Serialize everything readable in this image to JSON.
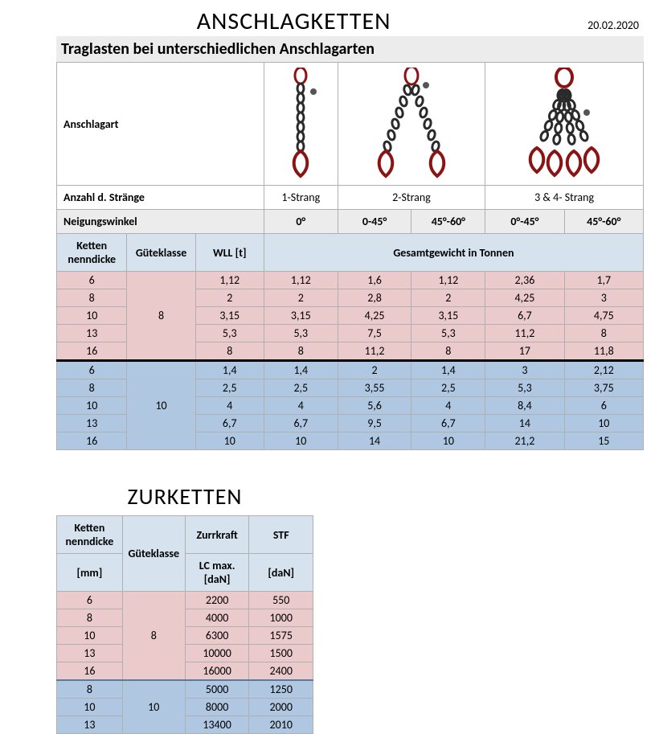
{
  "page": {
    "title": "ANSCHLAGKETTEN",
    "date": "20.02.2020",
    "subtitle": "Traglasten bei unterschiedlichen Anschlagarten"
  },
  "t1": {
    "row_anschlagart": "Anschlagart",
    "row_anzahl": "Anzahl d. Stränge",
    "anzahl_vals": [
      "1-Strang",
      "2-Strang",
      "3 & 4- Strang"
    ],
    "row_winkel": "Neigungswinkel",
    "winkel_vals": [
      "0°",
      "0-45°",
      "45°-60°",
      "0°-45°",
      "45°-60°"
    ],
    "col_kette": "Ketten nenndicke",
    "col_gk": "Güteklasse",
    "col_wll": "WLL [t]",
    "col_gesamt": "Gesamtgewicht in Tonnen",
    "group1_gk": "8",
    "group2_gk": "10",
    "rows1": [
      {
        "d": "6",
        "wll": "1,12",
        "v": [
          "1,12",
          "1,6",
          "1,12",
          "2,36",
          "1,7"
        ]
      },
      {
        "d": "8",
        "wll": "2",
        "v": [
          "2",
          "2,8",
          "2",
          "4,25",
          "3"
        ]
      },
      {
        "d": "10",
        "wll": "3,15",
        "v": [
          "3,15",
          "4,25",
          "3,15",
          "6,7",
          "4,75"
        ]
      },
      {
        "d": "13",
        "wll": "5,3",
        "v": [
          "5,3",
          "7,5",
          "5,3",
          "11,2",
          "8"
        ]
      },
      {
        "d": "16",
        "wll": "8",
        "v": [
          "8",
          "11,2",
          "8",
          "17",
          "11,8"
        ]
      }
    ],
    "rows2": [
      {
        "d": "6",
        "wll": "1,4",
        "v": [
          "1,4",
          "2",
          "1,4",
          "3",
          "2,12"
        ]
      },
      {
        "d": "8",
        "wll": "2,5",
        "v": [
          "2,5",
          "3,55",
          "2,5",
          "5,3",
          "3,75"
        ]
      },
      {
        "d": "10",
        "wll": "4",
        "v": [
          "4",
          "5,6",
          "4",
          "8,4",
          "6"
        ]
      },
      {
        "d": "13",
        "wll": "6,7",
        "v": [
          "6,7",
          "9,5",
          "6,7",
          "14",
          "10"
        ]
      },
      {
        "d": "16",
        "wll": "10",
        "v": [
          "10",
          "14",
          "10",
          "21,2",
          "15"
        ]
      }
    ]
  },
  "t2": {
    "title": "ZURKETTEN",
    "col_kette": "Ketten nenndicke",
    "col_mm": "[mm]",
    "col_gk": "Güteklasse",
    "col_zurr": "Zurrkraft",
    "col_lc": "LC max. [daN]",
    "col_stf": "STF",
    "col_dan": "[daN]",
    "group1_gk": "8",
    "group2_gk": "10",
    "rows1": [
      {
        "d": "6",
        "lc": "2200",
        "stf": "550"
      },
      {
        "d": "8",
        "lc": "4000",
        "stf": "1000"
      },
      {
        "d": "10",
        "lc": "6300",
        "stf": "1575"
      },
      {
        "d": "13",
        "lc": "10000",
        "stf": "1500"
      },
      {
        "d": "16",
        "lc": "16000",
        "stf": "2400"
      }
    ],
    "rows2": [
      {
        "d": "8",
        "lc": "5000",
        "stf": "1250"
      },
      {
        "d": "10",
        "lc": "8000",
        "stf": "2000"
      },
      {
        "d": "13",
        "lc": "13400",
        "stf": "2010"
      }
    ]
  },
  "colors": {
    "pink": "#ebcacb",
    "blue_row": "#afc7e1",
    "blue_hdr": "#d6e3ee",
    "grey": "#ececec",
    "border": "#b0b0b0",
    "chain_red": "#8a1414",
    "chain_dark": "#2a2a2a"
  }
}
